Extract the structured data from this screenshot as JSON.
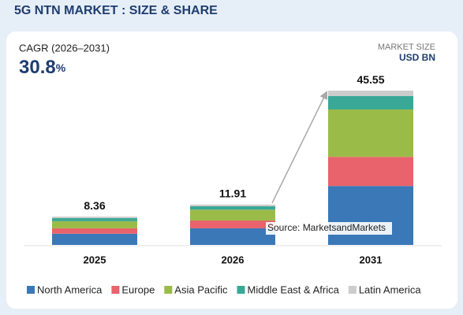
{
  "chart_data": {
    "type": "stacked_bar",
    "title": "5G NTN MARKET : SIZE & SHARE",
    "cagr_label": "CAGR (2026–2031)",
    "cagr_value": "30.8",
    "cagr_unit": "%",
    "unit_label": "MARKET SIZE",
    "unit": "USD BN",
    "source": "Source: MarketsandMarkets",
    "categories": [
      "2025",
      "2026",
      "2031"
    ],
    "totals": [
      8.36,
      11.91,
      45.55
    ],
    "series": [
      {
        "name": "North America",
        "color": "#3a78b8",
        "values": [
          3.3,
          4.9,
          17.4
        ]
      },
      {
        "name": "Europe",
        "color": "#e8636b",
        "values": [
          1.6,
          2.3,
          8.6
        ]
      },
      {
        "name": "Asia Pacific",
        "color": "#9bbb48",
        "values": [
          2.1,
          3.2,
          14.0
        ]
      },
      {
        "name": "Middle East & Africa",
        "color": "#3aa896",
        "values": [
          0.9,
          1.0,
          3.95
        ]
      },
      {
        "name": "Latin America",
        "color": "#cccccc",
        "values": [
          0.46,
          0.51,
          1.6
        ]
      }
    ],
    "ylim": [
      0,
      50
    ]
  }
}
